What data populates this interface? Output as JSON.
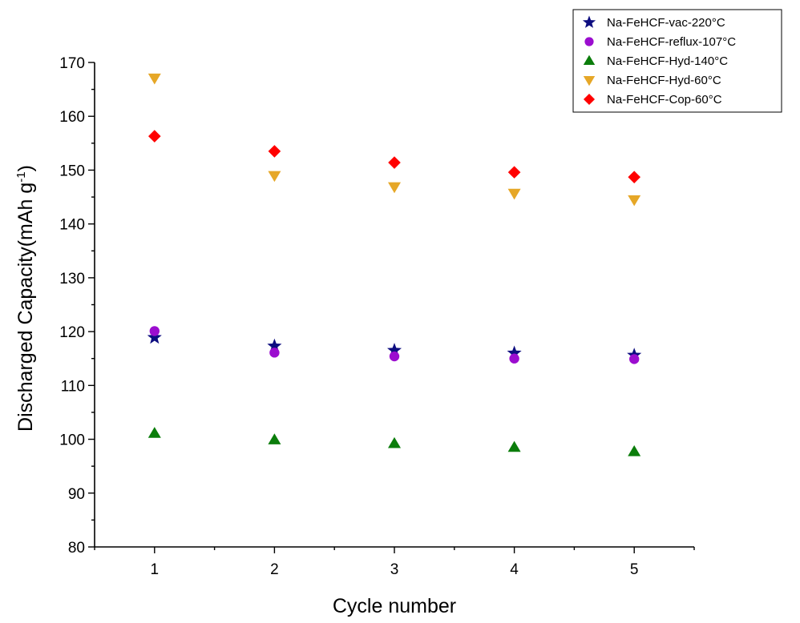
{
  "chart_data": {
    "type": "scatter",
    "title": "",
    "xlabel": "Cycle number",
    "ylabel_main": "Discharged Capacity(mAh g",
    "ylabel_sup": "-1",
    "ylabel_end": ")",
    "xlim": [
      0.5,
      5.5
    ],
    "ylim": [
      80,
      170
    ],
    "xticks": [
      1,
      2,
      3,
      4,
      5
    ],
    "yticks": [
      80,
      90,
      100,
      110,
      120,
      130,
      140,
      150,
      160,
      170
    ],
    "grid": false,
    "legend_position": "top-right",
    "x": [
      1,
      2,
      3,
      4,
      5
    ],
    "series": [
      {
        "name": "Na-FeHCF-vac-220°C",
        "marker": "star",
        "color": "#0d0d80",
        "values": [
          118.9,
          117.3,
          116.5,
          116.0,
          115.6
        ]
      },
      {
        "name": "Na-FeHCF-reflux-107°C",
        "marker": "circle",
        "color": "#9b0dcf",
        "values": [
          120.1,
          116.1,
          115.4,
          115.0,
          114.9
        ]
      },
      {
        "name": "Na-FeHCF-Hyd-140°C",
        "marker": "triangle-up",
        "color": "#0b7d0b",
        "values": [
          101.1,
          99.9,
          99.2,
          98.5,
          97.7
        ]
      },
      {
        "name": "Na-FeHCF-Hyd-60°C",
        "marker": "triangle-down",
        "color": "#e6a727",
        "values": [
          167.1,
          149.0,
          146.9,
          145.7,
          144.5
        ]
      },
      {
        "name": "Na-FeHCF-Cop-60°C",
        "marker": "diamond",
        "color": "#ff0000",
        "values": [
          156.3,
          153.5,
          151.4,
          149.6,
          148.7
        ]
      }
    ]
  }
}
